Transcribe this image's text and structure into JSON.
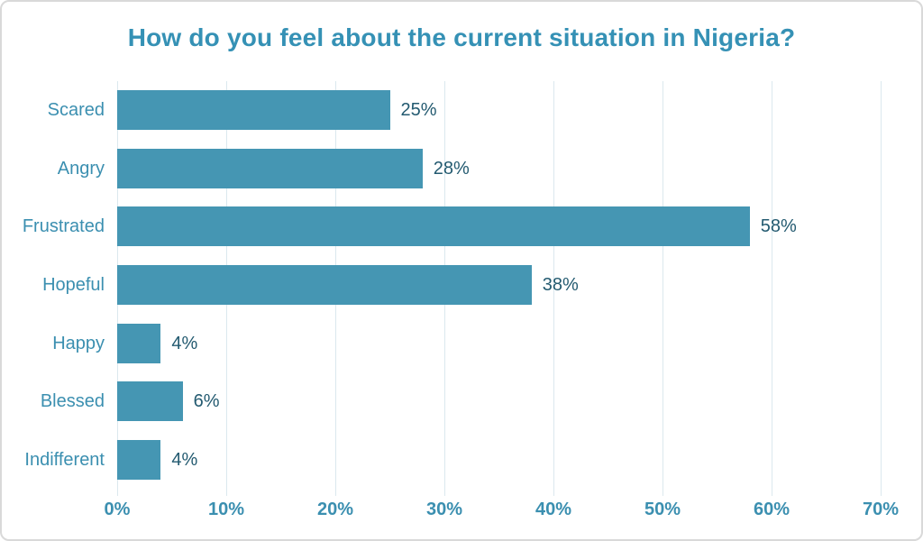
{
  "frame": {
    "background": "#ffffff",
    "border_color": "#d9d9d9"
  },
  "chart_data": {
    "type": "bar",
    "orientation": "horizontal",
    "title": "How do you feel about the current situation in Nigeria?",
    "categories": [
      "Scared",
      "Angry",
      "Frustrated",
      "Hopeful",
      "Happy",
      "Blessed",
      "Indifferent"
    ],
    "values": [
      25,
      28,
      58,
      38,
      4,
      6,
      4
    ],
    "value_labels": [
      "25%",
      "28%",
      "58%",
      "38%",
      "4%",
      "6%",
      "4%"
    ],
    "xlabel": "",
    "ylabel": "",
    "xlim": [
      0,
      70
    ],
    "x_ticks": [
      0,
      10,
      20,
      30,
      40,
      50,
      60,
      70
    ],
    "x_tick_labels": [
      "0%",
      "10%",
      "20%",
      "30%",
      "40%",
      "50%",
      "60%",
      "70%"
    ],
    "grid": "vertical-only",
    "legend": "none",
    "colors": {
      "bar": "#4596B3",
      "title": "#3591B5",
      "category_label": "#3B8FB0",
      "value_label": "#235A70",
      "axis_tick_label": "#3B8FB0",
      "gridline": "#dbe8ee"
    }
  }
}
